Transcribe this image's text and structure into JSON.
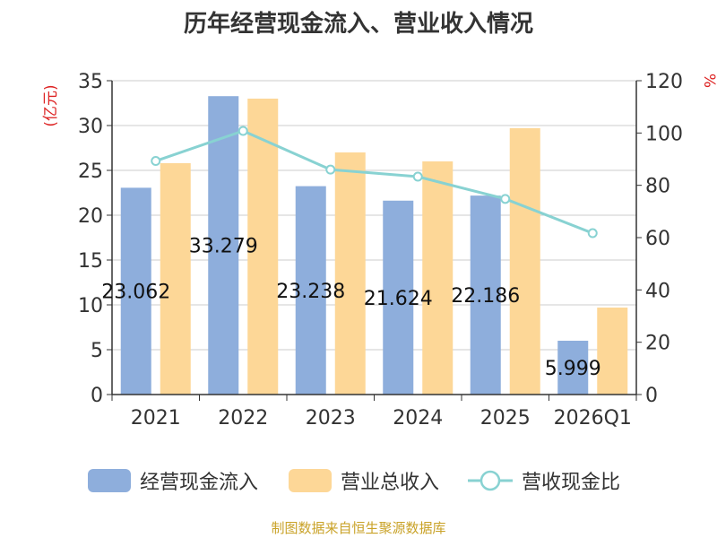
{
  "chart_data": {
    "type": "bar",
    "title": "历年经营现金流入、营业收入情况",
    "categories": [
      "2021",
      "2022",
      "2023",
      "2024",
      "2025",
      "2026Q1"
    ],
    "series": [
      {
        "name": "经营现金流入",
        "type": "bar",
        "axis": "left",
        "color": "#8eaedc",
        "values": [
          23.062,
          33.279,
          23.238,
          21.624,
          22.186,
          5.999
        ],
        "labels": [
          "23.062",
          "33.279",
          "23.238",
          "21.624",
          "22.186",
          "5.999"
        ]
      },
      {
        "name": "营业总收入",
        "type": "bar",
        "axis": "left",
        "color": "#fdd797",
        "values": [
          25.8,
          33.0,
          27.0,
          26.0,
          29.7,
          9.7
        ]
      },
      {
        "name": "营收现金比",
        "type": "line",
        "axis": "right",
        "color": "#88d2d2",
        "values": [
          89.3,
          100.8,
          86.0,
          83.3,
          74.8,
          61.7
        ]
      }
    ],
    "y_left": {
      "label": "(亿元)",
      "min": 0,
      "max": 35,
      "ticks": [
        "0",
        "5",
        "10",
        "15",
        "20",
        "25",
        "30",
        "35"
      ]
    },
    "y_right": {
      "label": "%",
      "min": 0,
      "max": 120,
      "ticks": [
        "0",
        "20",
        "40",
        "60",
        "80",
        "100",
        "120"
      ]
    },
    "grid": true,
    "legend_position": "bottom"
  },
  "source_note": "制图数据来自恒生聚源数据库"
}
